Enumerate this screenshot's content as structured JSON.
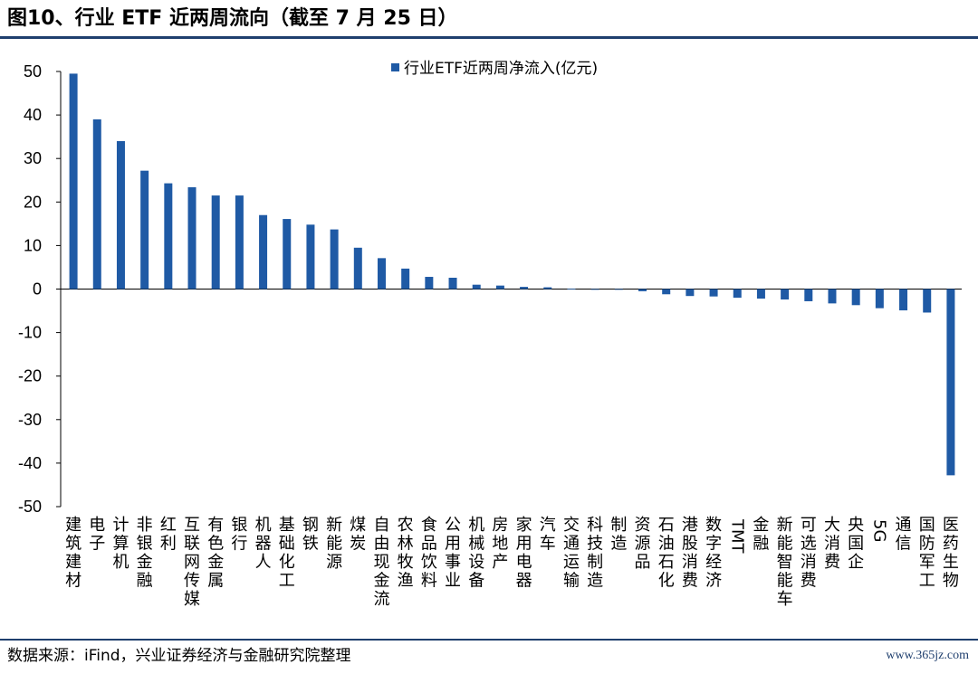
{
  "title": "图10、行业 ETF 近两周流向（截至 7 月 25 日）",
  "source": "数据来源：iFind，兴业证券经济与金融研究院整理",
  "watermark": "www.365jz.com",
  "colors": {
    "bar": "#1f5aa5",
    "rule": "#1f3f6e"
  },
  "chart_data": {
    "type": "bar",
    "title": "",
    "xlabel": "",
    "ylabel": "",
    "ylim": [
      -50,
      50
    ],
    "yticks": [
      50,
      40,
      30,
      20,
      10,
      0,
      -10,
      -20,
      -30,
      -40,
      -50
    ],
    "grid": false,
    "legend_position": "top-center",
    "categories": [
      "建筑建材",
      "电子",
      "计算机",
      "非银金融",
      "红利",
      "互联网传媒",
      "有色金属",
      "银行",
      "机器人",
      "基础化工",
      "钢铁",
      "新能源",
      "煤炭",
      "自由现金流",
      "农林牧渔",
      "食品饮料",
      "公用事业",
      "机械设备",
      "房地产",
      "家用电器",
      "汽车",
      "交通运输",
      "科技制造",
      "制造",
      "资源品",
      "石油石化",
      "港股消费",
      "数字经济",
      "TMT",
      "金融",
      "新能智能车",
      "可选消费",
      "大消费",
      "央国企",
      "5G",
      "通信",
      "国防军工",
      "医药生物"
    ],
    "series": [
      {
        "name": "行业ETF近两周净流入(亿元)",
        "values": [
          49.5,
          39,
          34,
          27.2,
          24.3,
          23.4,
          21.5,
          21.5,
          17,
          16.1,
          14.8,
          13.7,
          9.5,
          7.1,
          4.7,
          2.8,
          2.6,
          1.0,
          0.8,
          0.5,
          0.4,
          0.1,
          0.0,
          -0.1,
          -0.5,
          -1.2,
          -1.6,
          -1.7,
          -2.0,
          -2.2,
          -2.4,
          -2.8,
          -3.3,
          -3.7,
          -4.4,
          -4.9,
          -5.4,
          -42.8
        ]
      }
    ]
  }
}
